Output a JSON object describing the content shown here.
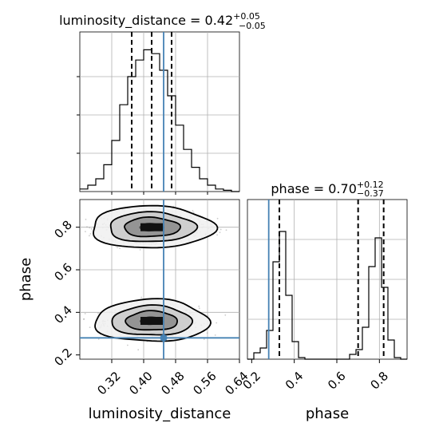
{
  "chart_data": {
    "type": "corner",
    "parameters": [
      "luminosity_distance",
      "phase"
    ],
    "truths": {
      "luminosity_distance": 0.45,
      "phase": 0.28
    },
    "panels": [
      {
        "id": "hist-luminosity_distance",
        "type": "histogram",
        "parameter": "luminosity_distance",
        "title_prefix": "luminosity_distance = 0.42",
        "title_sup": "+0.05",
        "title_sub": "−0.05",
        "xlim": [
          0.24,
          0.64
        ],
        "ylim": [
          0,
          0.125
        ],
        "quantiles": [
          0.37,
          0.42,
          0.47
        ],
        "bins": [
          0.24,
          0.26,
          0.28,
          0.3,
          0.32,
          0.34,
          0.36,
          0.38,
          0.4,
          0.42,
          0.44,
          0.46,
          0.48,
          0.5,
          0.52,
          0.54,
          0.56,
          0.58,
          0.6,
          0.62,
          0.64
        ],
        "counts": [
          0.002,
          0.005,
          0.01,
          0.021,
          0.04,
          0.068,
          0.09,
          0.103,
          0.111,
          0.108,
          0.095,
          0.075,
          0.052,
          0.033,
          0.019,
          0.01,
          0.005,
          0.002,
          0.001,
          0.0
        ],
        "truth": 0.45
      },
      {
        "id": "hist-phase",
        "type": "histogram",
        "parameter": "phase",
        "title_prefix": "phase = 0.70",
        "title_sup": "+0.12",
        "title_sub": "−0.37",
        "xlim": [
          0.18,
          0.93
        ],
        "ylim": [
          0,
          0.1
        ],
        "quantiles": [
          0.33,
          0.7,
          0.82
        ],
        "bins": [
          0.18,
          0.21,
          0.24,
          0.27,
          0.3,
          0.33,
          0.36,
          0.39,
          0.42,
          0.45,
          0.48,
          0.51,
          0.54,
          0.57,
          0.6,
          0.63,
          0.66,
          0.69,
          0.72,
          0.75,
          0.78,
          0.81,
          0.84,
          0.87,
          0.9,
          0.93
        ],
        "counts": [
          0.0,
          0.004,
          0.007,
          0.018,
          0.061,
          0.08,
          0.04,
          0.011,
          0.001,
          0.0,
          0.0,
          0.0,
          0.0,
          0.0,
          0.0,
          0.0,
          0.003,
          0.006,
          0.02,
          0.058,
          0.076,
          0.045,
          0.012,
          0.001,
          0.0
        ],
        "truth": 0.28
      },
      {
        "id": "2d-phase-vs-luminosity_distance",
        "type": "contour2d",
        "x": "luminosity_distance",
        "y": "phase",
        "xlim": [
          0.24,
          0.64
        ],
        "ylim": [
          0.18,
          0.93
        ],
        "modes": [
          {
            "x": 0.42,
            "y": 0.36,
            "sx": 0.065,
            "sy": 0.045
          },
          {
            "x": 0.42,
            "y": 0.8,
            "sx": 0.07,
            "sy": 0.045
          }
        ],
        "truth": [
          0.45,
          0.28
        ]
      }
    ],
    "axes": {
      "luminosity_distance": {
        "label": "luminosity_distance",
        "ticks": [
          0.32,
          0.4,
          0.48,
          0.56,
          0.64
        ],
        "tick_labels": [
          "0.32",
          "0.40",
          "0.48",
          "0.56",
          "0.64"
        ]
      },
      "phase": {
        "label": "phase",
        "ticks": [
          0.2,
          0.4,
          0.6,
          0.8
        ],
        "tick_labels": [
          "0.2",
          "0.4",
          "0.6",
          "0.8"
        ]
      }
    },
    "grid": true,
    "colors": {
      "truth": "#4682b4",
      "hist": "#000000",
      "quantile": "#000000",
      "grid": "#b0b0b0",
      "scatter": "#9a9a9a"
    }
  }
}
